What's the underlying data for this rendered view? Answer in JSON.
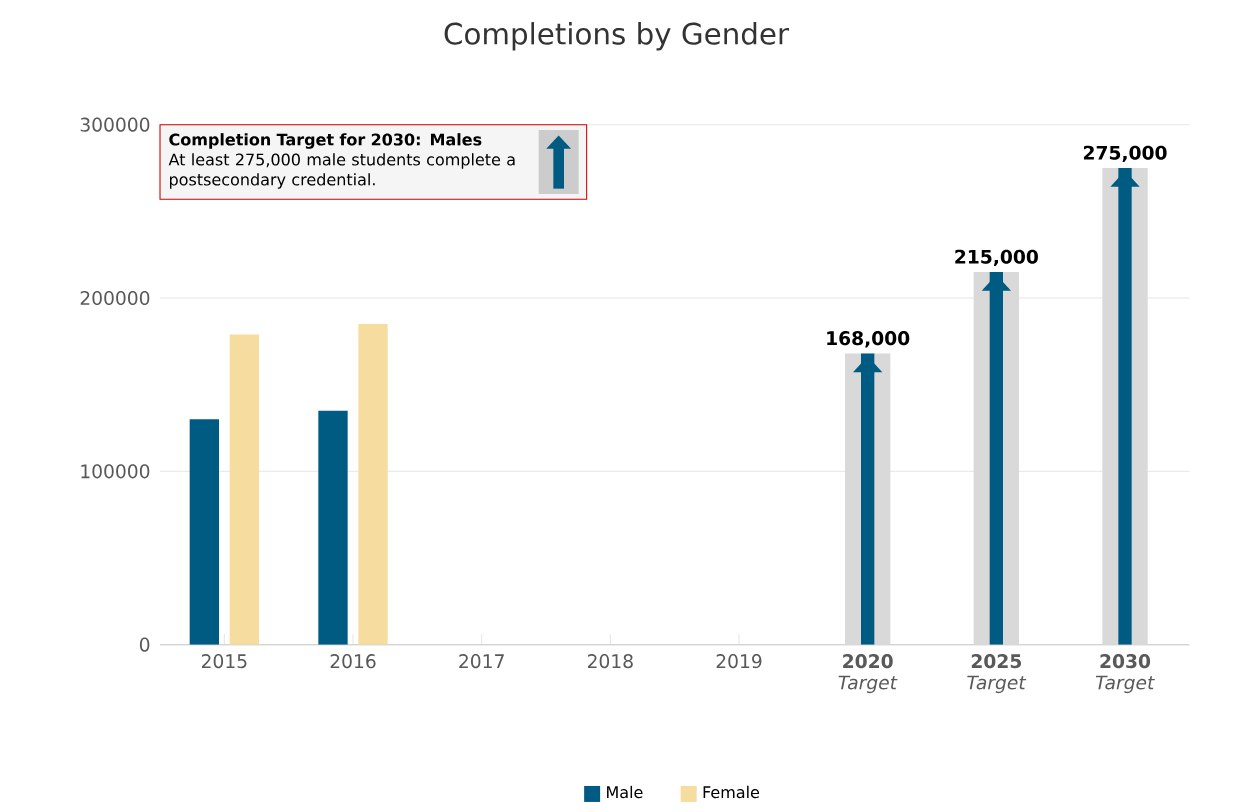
{
  "chart_data": {
    "type": "bar",
    "title": "Completions by Gender",
    "categories": [
      "2015",
      "2016",
      "2017",
      "2018",
      "2019",
      "**2020** *Target*",
      "**2025** *Target*",
      "**2030** *Target*"
    ],
    "series": [
      {
        "name": "Male",
        "color": "#005b82",
        "values": [
          130000,
          135000,
          null,
          null,
          null,
          null,
          null,
          null
        ]
      },
      {
        "name": "Female",
        "color": "#f7dc9f",
        "values": [
          179000,
          185000,
          null,
          null,
          null,
          null,
          null,
          null
        ]
      },
      {
        "color": "#d9d9d9",
        "values": [
          null,
          null,
          null,
          null,
          null,
          168000,
          215000,
          275000
        ],
        "value_labels": [
          null,
          null,
          null,
          null,
          null,
          "168,000",
          "215,000",
          "275,000"
        ]
      },
      {
        "color": "#005b82",
        "values": [
          null,
          null,
          null,
          null,
          null,
          168000,
          215000,
          275000
        ]
      }
    ],
    "ylim": [
      0,
      300000
    ],
    "yticks": [
      0,
      100000,
      200000,
      300000
    ],
    "grid": "y",
    "legend": "bottom",
    "annotations": [
      "Completion Target for 2030: Males",
      "At least 275,000 male students complete a postsecondary credential."
    ]
  }
}
